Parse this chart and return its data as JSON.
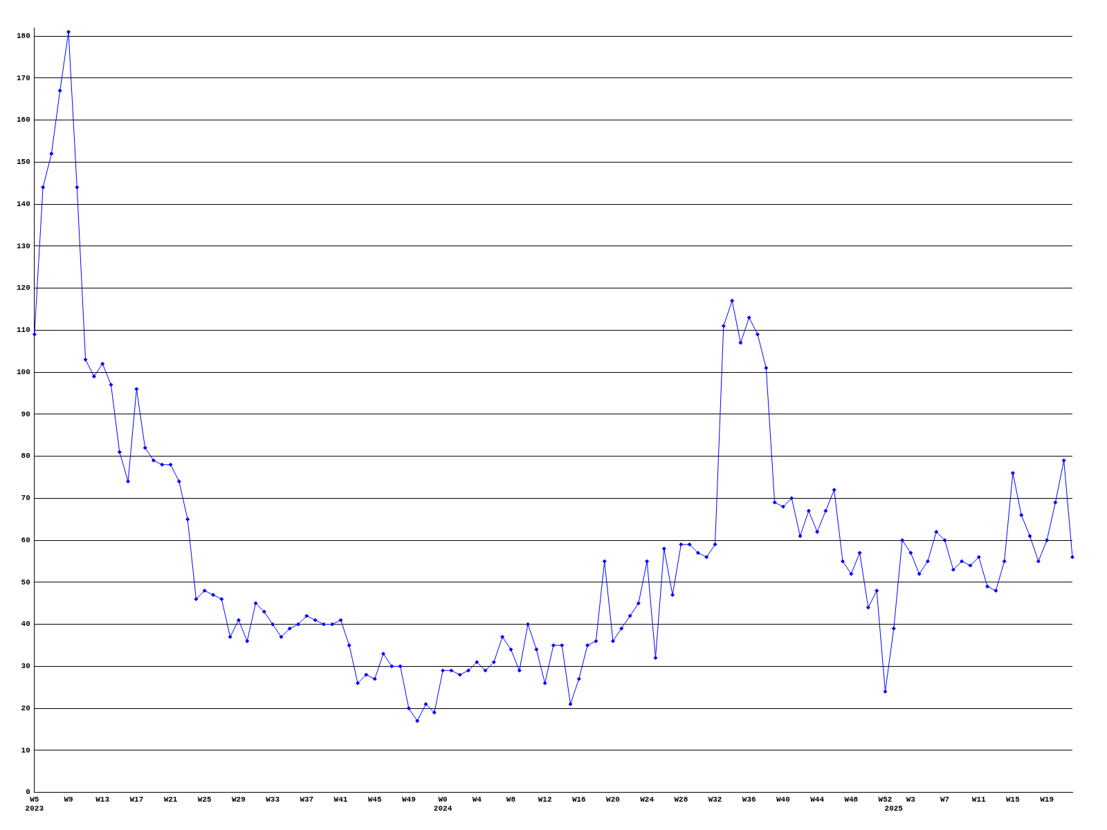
{
  "chart_data": {
    "type": "line",
    "categories": [
      "W5\n2023",
      null,
      null,
      null,
      "W9",
      null,
      null,
      null,
      "W13",
      null,
      null,
      null,
      "W17",
      null,
      null,
      null,
      "W21",
      null,
      null,
      null,
      "W25",
      null,
      null,
      null,
      "W29",
      null,
      null,
      null,
      "W33",
      null,
      null,
      null,
      "W37",
      null,
      null,
      null,
      "W41",
      null,
      null,
      null,
      "W45",
      null,
      null,
      null,
      "W49",
      null,
      null,
      null,
      "W0\n2024",
      null,
      null,
      null,
      "W4",
      null,
      null,
      null,
      "W8",
      null,
      null,
      null,
      "W12",
      null,
      null,
      null,
      "W16",
      null,
      null,
      null,
      "W20",
      null,
      null,
      null,
      "W24",
      null,
      null,
      null,
      "W28",
      null,
      null,
      null,
      "W32",
      null,
      null,
      null,
      "W36",
      null,
      null,
      null,
      "W40",
      null,
      null,
      null,
      "W44",
      null,
      null,
      null,
      "W48",
      null,
      null,
      null,
      "W52",
      "\n2025",
      null,
      "W3",
      null,
      null,
      null,
      "W7",
      null,
      null,
      null,
      "W11",
      null,
      null,
      null,
      "W15",
      null,
      null,
      null,
      "W19",
      null,
      null,
      null
    ],
    "series": [
      {
        "color": "#0000ff",
        "values": [
          109,
          144,
          152,
          167,
          181,
          144,
          103,
          99,
          102,
          97,
          81,
          74,
          96,
          82,
          79,
          78,
          78,
          74,
          65,
          46,
          48,
          47,
          46,
          37,
          41,
          36,
          45,
          43,
          40,
          37,
          39,
          40,
          42,
          41,
          40,
          40,
          41,
          35,
          26,
          28,
          27,
          33,
          30,
          30,
          20,
          17,
          21,
          19,
          29,
          29,
          28,
          29,
          31,
          29,
          31,
          37,
          34,
          29,
          40,
          34,
          26,
          35,
          35,
          21,
          27,
          35,
          36,
          55,
          36,
          39,
          42,
          45,
          55,
          32,
          58,
          47,
          59,
          59,
          57,
          56,
          59,
          111,
          117,
          107,
          113,
          109,
          101,
          69,
          68,
          70,
          61,
          67,
          62,
          67,
          72,
          55,
          52,
          57,
          44,
          48,
          24,
          39,
          60,
          57,
          52,
          55,
          62,
          60,
          53,
          55,
          54,
          56,
          49,
          48,
          55,
          76,
          66,
          61,
          55,
          60,
          69,
          79,
          56
        ]
      }
    ],
    "ylim": [
      0,
      182
    ],
    "yticks": [
      0,
      10,
      20,
      30,
      40,
      50,
      60,
      70,
      80,
      90,
      100,
      110,
      120,
      130,
      140,
      150,
      160,
      170,
      180
    ],
    "grid": "y",
    "legend": false,
    "marker": "diamond",
    "line_style": "solid"
  }
}
